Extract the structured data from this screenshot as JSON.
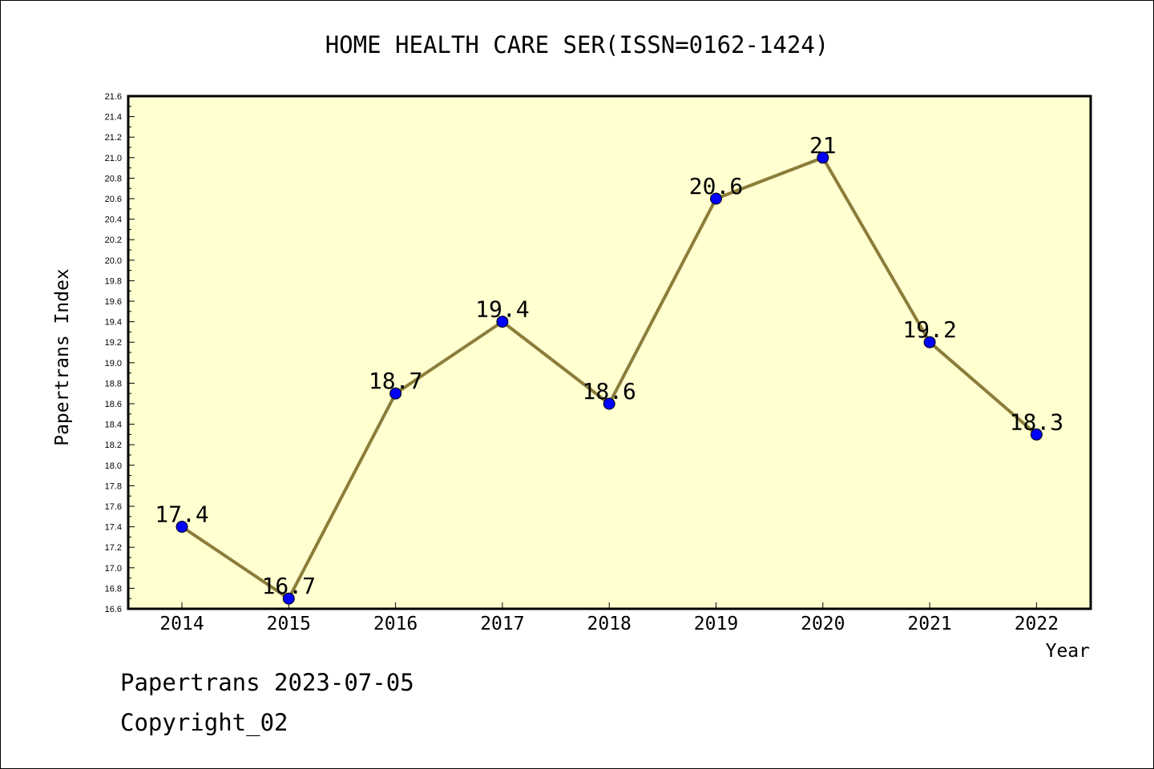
{
  "chart_data": {
    "type": "line",
    "title": "HOME HEALTH CARE SER(ISSN=0162-1424)",
    "xlabel": "Year",
    "ylabel": "Papertrans Index",
    "x": [
      "2014",
      "2015",
      "2016",
      "2017",
      "2018",
      "2019",
      "2020",
      "2021",
      "2022"
    ],
    "series": [
      {
        "values": [
          17.4,
          16.7,
          18.7,
          19.4,
          18.6,
          20.6,
          21.0,
          19.2,
          18.3
        ],
        "labels": [
          "17.4",
          "16.7",
          "18.7",
          "19.4",
          "18.6",
          "20.6",
          "21",
          "19.2",
          "18.3"
        ]
      }
    ],
    "ylim": [
      16.6,
      21.6
    ],
    "yticks": [
      "16.6",
      "16.8",
      "17.0",
      "17.2",
      "17.4",
      "17.6",
      "17.8",
      "18.0",
      "18.2",
      "18.4",
      "18.6",
      "18.8",
      "19.0",
      "19.2",
      "19.4",
      "19.6",
      "19.8",
      "20.0",
      "20.2",
      "20.4",
      "20.6",
      "20.8",
      "21.0",
      "21.2",
      "21.4",
      "21.6"
    ],
    "grid": false,
    "colors": {
      "plot_background": "#ffffd0",
      "line": "#8b7d3a",
      "marker": "#0000ff"
    }
  },
  "footer": {
    "line1": "Papertrans 2023-07-05",
    "line2": "Copyright_02"
  }
}
